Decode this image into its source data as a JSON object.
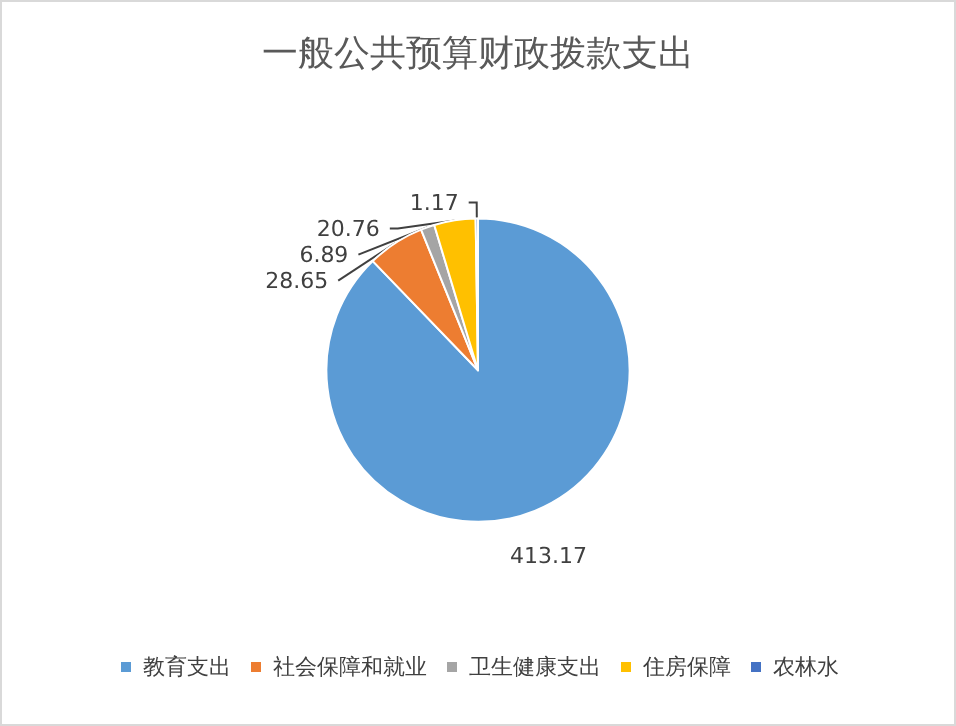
{
  "chart_data": {
    "type": "pie",
    "title": "一般公共预算财政拨款支出",
    "categories": [
      "教育支出",
      "社会保障和就业",
      "卫生健康支出",
      "住房保障",
      "农林水"
    ],
    "values": [
      413.17,
      28.65,
      6.89,
      20.76,
      1.17
    ],
    "colors": [
      "#5b9bd5",
      "#ed7d31",
      "#a5a5a5",
      "#ffc000",
      "#4472c4"
    ],
    "data_labels": true,
    "legend": "bottom"
  }
}
